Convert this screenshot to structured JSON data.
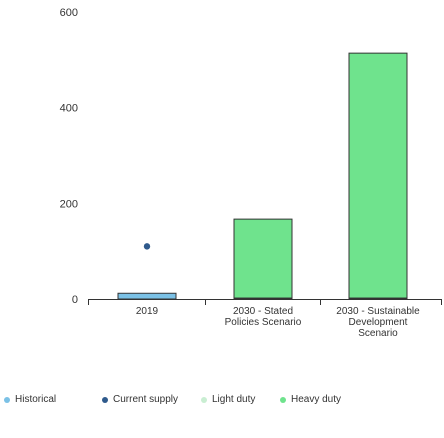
{
  "chart_data": {
    "type": "bar",
    "title": "",
    "xlabel": "",
    "ylabel": "",
    "ylim": [
      0,
      600
    ],
    "yticks": [
      0,
      200,
      400,
      600
    ],
    "categories": [
      [
        "2019"
      ],
      [
        "2030 - Stated",
        "Policies Scenario"
      ],
      [
        "2030 - Sustainable",
        "Development",
        "Scenario"
      ]
    ],
    "series": [
      {
        "name": "Historical",
        "values": [
          12,
          0,
          0
        ],
        "color": "#7bc1e6"
      },
      {
        "name": "Current supply",
        "values": [
          0,
          0,
          0
        ],
        "color": "#2f5a8c"
      },
      {
        "name": "Light duty",
        "values": [
          0,
          2,
          2
        ],
        "color": "#c9eed2"
      },
      {
        "name": "Heavy duty",
        "values": [
          0,
          165,
          512
        ],
        "color": "#6fe38d"
      }
    ],
    "markers": [
      {
        "series": "Current supply",
        "category_index": 0,
        "value": 110
      }
    ],
    "legend_position": "bottom",
    "grid": false
  }
}
